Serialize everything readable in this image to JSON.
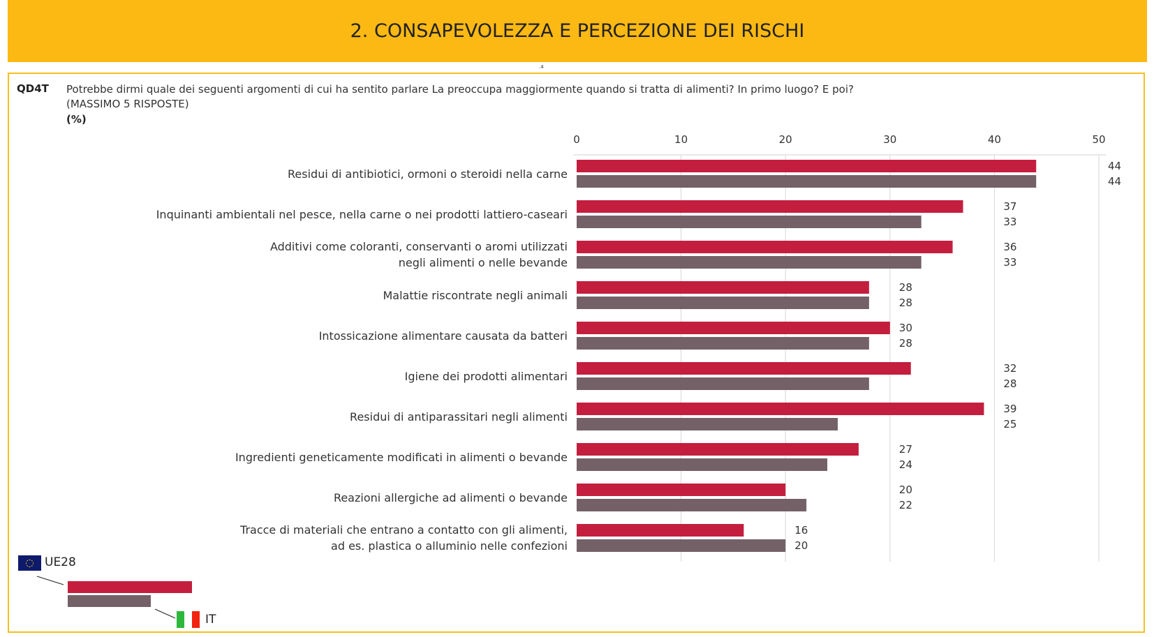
{
  "header": {
    "title": "2. CONSAPEVOLEZZA E PERCEZIONE DEI RISCHI",
    "page_marker": ".4"
  },
  "question": {
    "id": "QD4T",
    "text": "Potrebbe dirmi quale dei seguenti argomenti di cui ha sentito parlare La preoccupa maggiormente quando si tratta di alimenti? In primo luogo? E poi?",
    "note": "(MASSIMO 5 RISPOSTE)",
    "unit": "(%)"
  },
  "colors": {
    "eu": "#C41E3F",
    "it": "#746167",
    "header": "#FDB913"
  },
  "legend": {
    "eu": "UE28",
    "it": "IT"
  },
  "chart_data": {
    "type": "bar",
    "orientation": "horizontal",
    "xlim": [
      0,
      50
    ],
    "ticks": [
      "0",
      "10",
      "20",
      "30",
      "40",
      "50"
    ],
    "grid": true,
    "categories": [
      [
        "Residui di antibiotici, ormoni o steroidi nella carne"
      ],
      [
        "Inquinanti ambientali nel pesce, nella carne o nei prodotti lattiero-caseari"
      ],
      [
        "Additivi come coloranti, conservanti o aromi utilizzati",
        "negli alimenti o nelle bevande"
      ],
      [
        "Malattie riscontrate negli animali"
      ],
      [
        "Intossicazione alimentare causata da batteri"
      ],
      [
        "Igiene dei prodotti alimentari"
      ],
      [
        "Residui di antiparassitari negli alimenti"
      ],
      [
        "Ingredienti geneticamente modificati in alimenti o bevande"
      ],
      [
        "Reazioni allergiche ad alimenti o bevande"
      ],
      [
        "Tracce di materiali che entrano a contatto con gli alimenti,",
        "ad es. plastica o alluminio nelle confezioni"
      ]
    ],
    "series": [
      {
        "name": "UE28",
        "values": [
          44,
          37,
          36,
          28,
          30,
          32,
          39,
          27,
          20,
          16
        ]
      },
      {
        "name": "IT",
        "values": [
          44,
          33,
          33,
          28,
          28,
          28,
          25,
          24,
          22,
          20
        ]
      }
    ]
  }
}
